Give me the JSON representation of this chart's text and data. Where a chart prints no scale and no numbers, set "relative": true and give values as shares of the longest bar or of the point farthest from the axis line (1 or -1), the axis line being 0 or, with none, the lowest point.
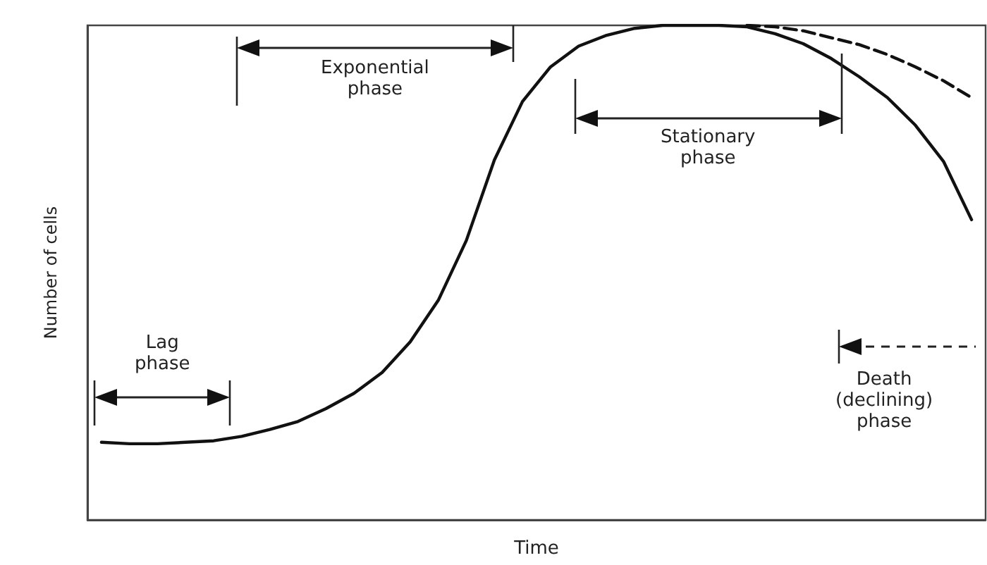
{
  "chart_data": {
    "type": "line",
    "relative": true,
    "xlabel": "Time",
    "ylabel": "Number of cells",
    "categories": [
      null,
      null,
      null,
      null,
      null,
      null,
      null,
      null,
      null,
      null,
      null,
      null,
      null,
      null,
      null,
      null,
      null,
      null,
      null,
      null,
      null,
      null,
      null,
      null,
      null,
      null,
      null,
      null,
      null,
      null,
      null,
      null
    ],
    "series": [
      {
        "color": "#111111",
        "line_style": "solid",
        "values": [
          0.157,
          0.154,
          0.154,
          0.157,
          0.16,
          0.169,
          0.183,
          0.199,
          0.225,
          0.256,
          0.298,
          0.36,
          0.444,
          0.565,
          0.728,
          0.846,
          0.916,
          0.958,
          0.98,
          0.994,
          1,
          1,
          1,
          0.997,
          0.983,
          0.963,
          0.933,
          0.896,
          0.854,
          0.798,
          0.725,
          0.607
        ]
      },
      {
        "color": "#111111",
        "line_style": "dashed",
        "values": [
          null,
          null,
          null,
          null,
          null,
          null,
          null,
          null,
          null,
          null,
          null,
          null,
          null,
          null,
          null,
          null,
          null,
          null,
          null,
          null,
          null,
          null,
          null,
          1,
          0.997,
          0.989,
          0.975,
          0.961,
          0.941,
          0.916,
          0.888,
          0.854
        ]
      }
    ],
    "marker": "none",
    "grid": false,
    "annotations": [
      "Lag phase",
      "Exponential phase",
      "Stationary phase",
      "Death (declining) phase"
    ]
  }
}
